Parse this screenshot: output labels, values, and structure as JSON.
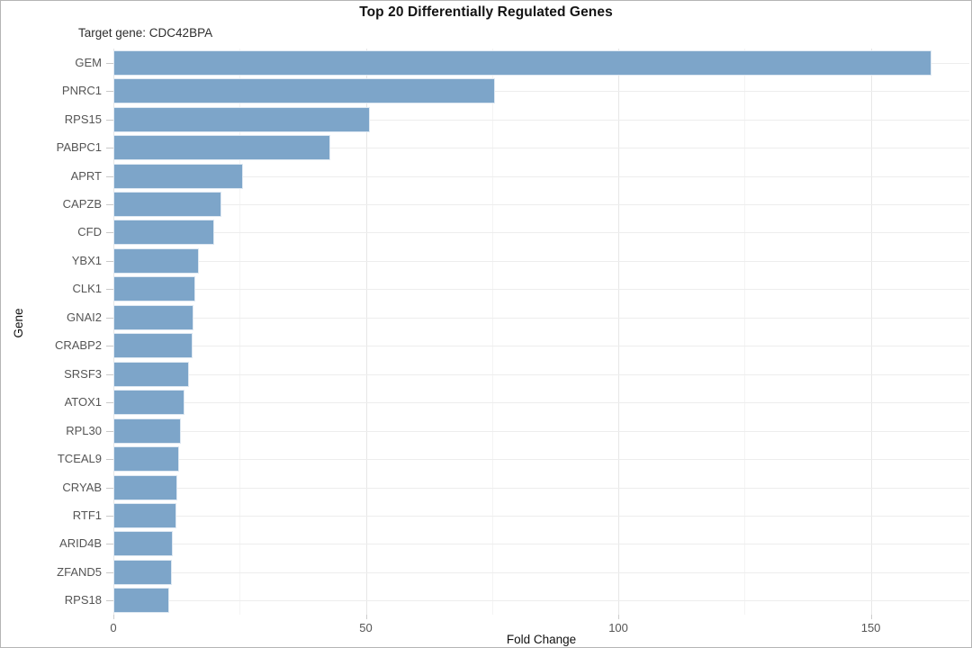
{
  "title": "Top 20 Differentially Regulated Genes",
  "subtitle": "Target gene: CDC42BPA",
  "axes": {
    "x_title": "Fold Change",
    "y_title": "Gene"
  },
  "colors": {
    "bar_fill": "#7da5c9",
    "grid_major": "#e7e7e7",
    "grid_minor": "#f4f4f4",
    "axis_text": "#555555",
    "title_text": "#141414"
  },
  "chart_data": {
    "type": "bar",
    "orientation": "horizontal",
    "title": "Top 20 Differentially Regulated Genes",
    "subtitle": "Target gene: CDC42BPA",
    "xlabel": "Fold Change",
    "ylabel": "Gene",
    "categories": [
      "GEM",
      "PNRC1",
      "RPS15",
      "PABPC1",
      "APRT",
      "CAPZB",
      "CFD",
      "YBX1",
      "CLK1",
      "GNAI2",
      "CRABP2",
      "SRSF3",
      "ATOX1",
      "RPL30",
      "TCEAL9",
      "CRYAB",
      "RTF1",
      "ARID4B",
      "ZFAND5",
      "RPS18"
    ],
    "values": [
      162,
      75.5,
      50.8,
      43.0,
      25.6,
      21.3,
      19.9,
      16.9,
      16.2,
      15.8,
      15.7,
      15.0,
      14.1,
      13.4,
      13.0,
      12.6,
      12.4,
      11.7,
      11.5,
      11.1
    ],
    "xlim": [
      0,
      169.5
    ],
    "xticks": [
      0,
      50,
      100,
      150
    ],
    "xticks_minor": [
      25,
      75,
      125
    ],
    "grid": true,
    "legend": false,
    "bar_color": "#7da5c9"
  }
}
